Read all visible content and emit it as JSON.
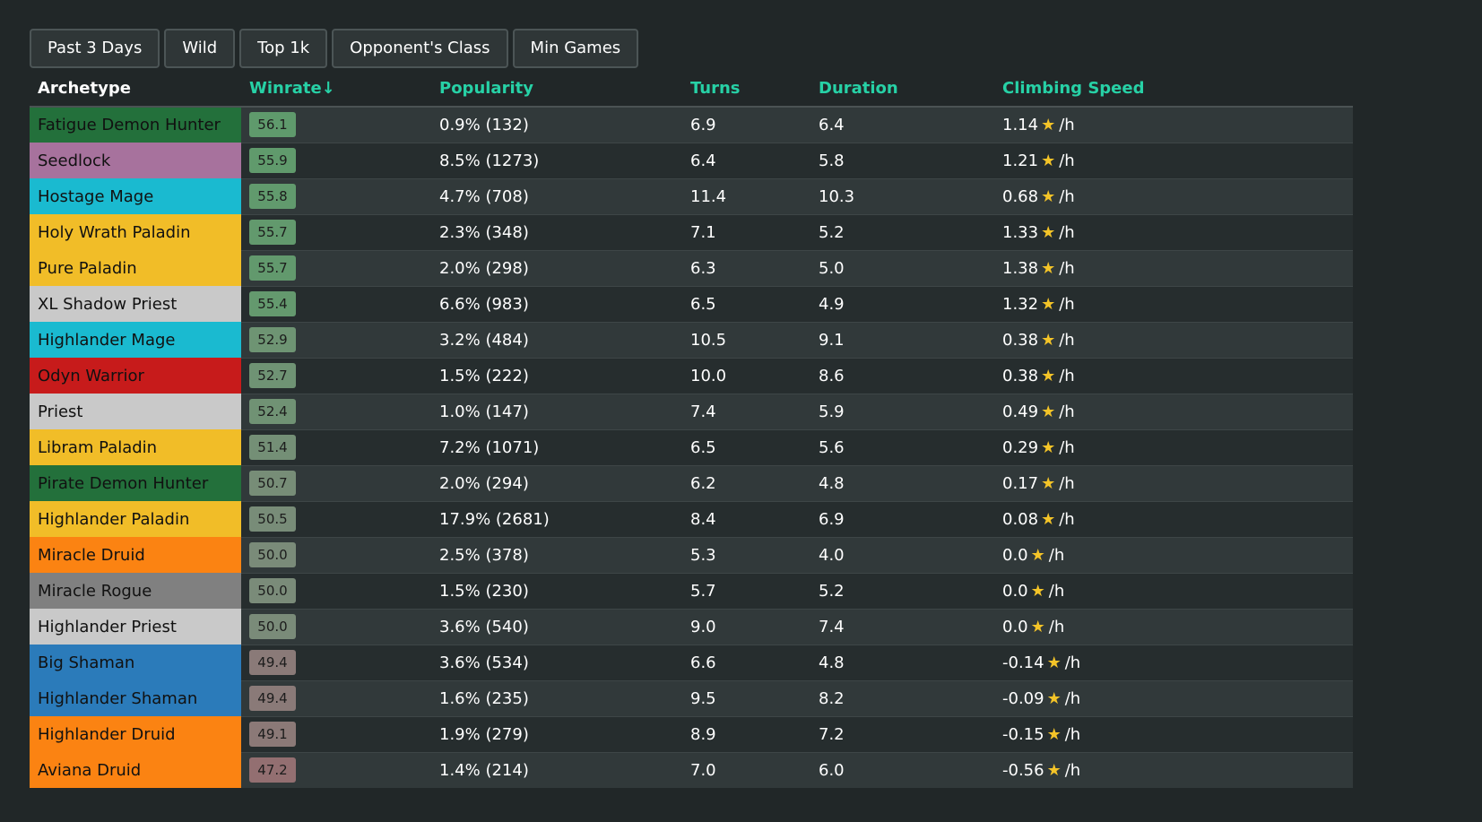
{
  "filters": [
    "Past 3 Days",
    "Wild",
    "Top 1k",
    "Opponent's Class",
    "Min Games"
  ],
  "table": {
    "headers": {
      "archetype": "Archetype",
      "winrate": "Winrate↓",
      "popularity": "Popularity",
      "turns": "Turns",
      "duration": "Duration",
      "climbing": "Climbing Speed"
    },
    "climb_unit": "/h",
    "star_icon": "star-icon",
    "rows": [
      {
        "name": "Fatigue Demon Hunter",
        "color": "#23703b",
        "winrate": "56.1",
        "winrate_color": "#5f9a6c",
        "popularity": "0.9% (132)",
        "turns": "6.9",
        "duration": "6.4",
        "climbing": "1.14"
      },
      {
        "name": "Seedlock",
        "color": "#a7729d",
        "winrate": "55.9",
        "winrate_color": "#609a6c",
        "popularity": "8.5% (1273)",
        "turns": "6.4",
        "duration": "5.8",
        "climbing": "1.21"
      },
      {
        "name": "Hostage Mage",
        "color": "#1abad0",
        "winrate": "55.8",
        "winrate_color": "#619a6d",
        "popularity": "4.7% (708)",
        "turns": "11.4",
        "duration": "10.3",
        "climbing": "0.68"
      },
      {
        "name": "Holy Wrath Paladin",
        "color": "#f1bd28",
        "winrate": "55.7",
        "winrate_color": "#62996d",
        "popularity": "2.3% (348)",
        "turns": "7.1",
        "duration": "5.2",
        "climbing": "1.33"
      },
      {
        "name": "Pure Paladin",
        "color": "#f1bd28",
        "winrate": "55.7",
        "winrate_color": "#62996d",
        "popularity": "2.0% (298)",
        "turns": "6.3",
        "duration": "5.0",
        "climbing": "1.38"
      },
      {
        "name": "XL Shadow Priest",
        "color": "#c9c9c9",
        "winrate": "55.4",
        "winrate_color": "#64996e",
        "popularity": "6.6% (983)",
        "turns": "6.5",
        "duration": "4.9",
        "climbing": "1.32"
      },
      {
        "name": "Highlander Mage",
        "color": "#1abad0",
        "winrate": "52.9",
        "winrate_color": "#6e9473",
        "popularity": "3.2% (484)",
        "turns": "10.5",
        "duration": "9.1",
        "climbing": "0.38"
      },
      {
        "name": "Odyn Warrior",
        "color": "#c71b1b",
        "winrate": "52.7",
        "winrate_color": "#6f9374",
        "popularity": "1.5% (222)",
        "turns": "10.0",
        "duration": "8.6",
        "climbing": "0.38"
      },
      {
        "name": "Priest",
        "color": "#c9c9c9",
        "winrate": "52.4",
        "winrate_color": "#709274",
        "popularity": "1.0% (147)",
        "turns": "7.4",
        "duration": "5.9",
        "climbing": "0.49"
      },
      {
        "name": "Libram Paladin",
        "color": "#f1bd28",
        "winrate": "51.4",
        "winrate_color": "#748f76",
        "popularity": "7.2% (1071)",
        "turns": "6.5",
        "duration": "5.6",
        "climbing": "0.29"
      },
      {
        "name": "Pirate Demon Hunter",
        "color": "#23703b",
        "winrate": "50.7",
        "winrate_color": "#778d77",
        "popularity": "2.0% (294)",
        "turns": "6.2",
        "duration": "4.8",
        "climbing": "0.17"
      },
      {
        "name": "Highlander Paladin",
        "color": "#f1bd28",
        "winrate": "50.5",
        "winrate_color": "#788c78",
        "popularity": "17.9% (2681)",
        "turns": "8.4",
        "duration": "6.9",
        "climbing": "0.08"
      },
      {
        "name": "Miracle Druid",
        "color": "#fb8312",
        "winrate": "50.0",
        "winrate_color": "#7a8b79",
        "popularity": "2.5% (378)",
        "turns": "5.3",
        "duration": "4.0",
        "climbing": "0.0"
      },
      {
        "name": "Miracle Rogue",
        "color": "#808080",
        "winrate": "50.0",
        "winrate_color": "#7a8b79",
        "popularity": "1.5% (230)",
        "turns": "5.7",
        "duration": "5.2",
        "climbing": "0.0"
      },
      {
        "name": "Highlander Priest",
        "color": "#c9c9c9",
        "winrate": "50.0",
        "winrate_color": "#7a8b79",
        "popularity": "3.6% (540)",
        "turns": "9.0",
        "duration": "7.4",
        "climbing": "0.0"
      },
      {
        "name": "Big Shaman",
        "color": "#2b7bba",
        "winrate": "49.4",
        "winrate_color": "#8a7a78",
        "popularity": "3.6% (534)",
        "turns": "6.6",
        "duration": "4.8",
        "climbing": "-0.14"
      },
      {
        "name": "Highlander Shaman",
        "color": "#2b7bba",
        "winrate": "49.4",
        "winrate_color": "#8a7a78",
        "popularity": "1.6% (235)",
        "turns": "9.5",
        "duration": "8.2",
        "climbing": "-0.09"
      },
      {
        "name": "Highlander Druid",
        "color": "#fb8312",
        "winrate": "49.1",
        "winrate_color": "#8b7977",
        "popularity": "1.9% (279)",
        "turns": "8.9",
        "duration": "7.2",
        "climbing": "-0.15"
      },
      {
        "name": "Aviana Druid",
        "color": "#fb8312",
        "winrate": "47.2",
        "winrate_color": "#936f71",
        "popularity": "1.4% (214)",
        "turns": "7.0",
        "duration": "6.0",
        "climbing": "-0.56"
      }
    ]
  }
}
